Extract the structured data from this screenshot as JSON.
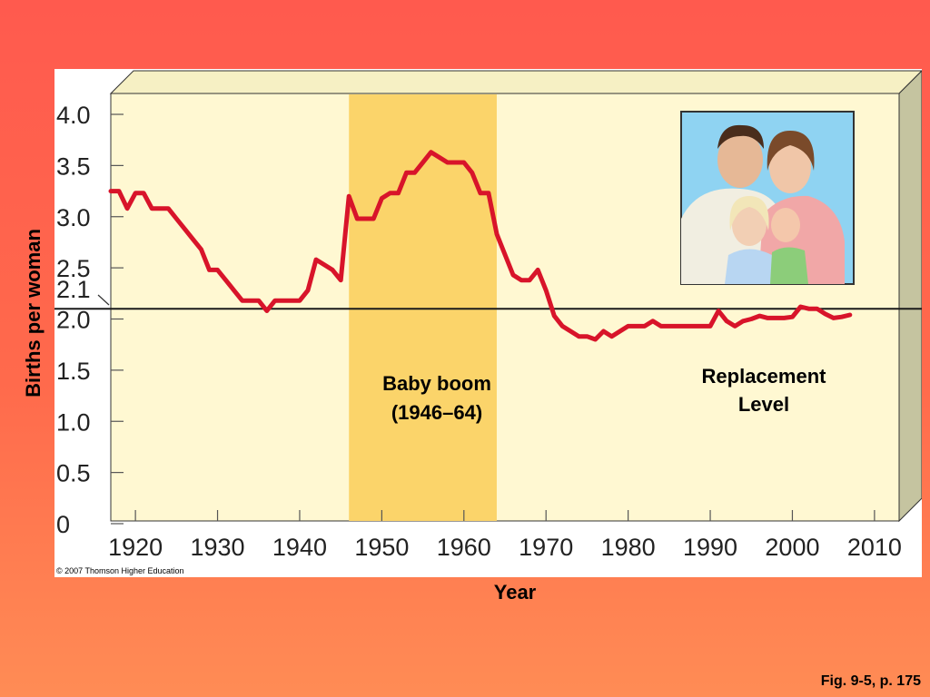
{
  "slide": {
    "x_axis_label": "Year",
    "y_axis_label": "Births per woman",
    "copyright": "© 2007 Thomson Higher Education",
    "figure_ref": "Fig. 9-5, p. 175"
  },
  "annotations": {
    "baby_boom_line1": "Baby boom",
    "baby_boom_line2": "(1946–64)",
    "replacement_line1": "Replacement",
    "replacement_line2": "Level",
    "replacement_tick": "2.1"
  },
  "photo": {
    "description_icon": "family-photo-icon"
  },
  "colors": {
    "background": "#ff5a4e",
    "plot_area": "#fff8d2",
    "baby_boom_band": "#fbd46a",
    "series_line": "#d8142a",
    "replacement_line": "#1a1a1a",
    "side_panel": "#c5c4a0"
  },
  "chart_data": {
    "type": "line",
    "title": "",
    "xlabel": "Year",
    "ylabel": "Births per woman",
    "xlim": [
      1917,
      2013
    ],
    "ylim": [
      0,
      4.0
    ],
    "x_ticks": [
      1920,
      1930,
      1940,
      1950,
      1960,
      1970,
      1980,
      1990,
      2000,
      2010
    ],
    "y_ticks": [
      0,
      0.5,
      1.0,
      1.5,
      2.0,
      2.5,
      3.0,
      3.5,
      4.0
    ],
    "y_tick_labels": [
      "0",
      "0.5",
      "1.0",
      "1.5",
      "2.0",
      "2.5",
      "3.0",
      "3.5",
      "4.0"
    ],
    "shaded_region": {
      "label": "Baby boom (1946–64)",
      "x_start": 1946,
      "x_end": 1964
    },
    "reference_line": {
      "label": "Replacement Level",
      "y": 2.1
    },
    "grid": false,
    "series": [
      {
        "name": "",
        "x": [
          1917,
          1918,
          1919,
          1920,
          1921,
          1922,
          1923,
          1924,
          1925,
          1926,
          1927,
          1928,
          1929,
          1930,
          1931,
          1932,
          1933,
          1934,
          1935,
          1936,
          1937,
          1938,
          1939,
          1940,
          1941,
          1942,
          1943,
          1944,
          1945,
          1946,
          1947,
          1948,
          1949,
          1950,
          1951,
          1952,
          1953,
          1954,
          1955,
          1956,
          1957,
          1958,
          1959,
          1960,
          1961,
          1962,
          1963,
          1964,
          1965,
          1966,
          1967,
          1968,
          1969,
          1970,
          1971,
          1972,
          1973,
          1974,
          1975,
          1976,
          1977,
          1978,
          1979,
          1980,
          1981,
          1982,
          1983,
          1984,
          1985,
          1986,
          1987,
          1988,
          1989,
          1990,
          1991,
          1992,
          1993,
          1994,
          1995,
          1996,
          1997,
          1998,
          1999,
          2000,
          2001,
          2002,
          2003,
          2004,
          2005,
          2006,
          2007
        ],
        "y": [
          3.25,
          3.25,
          3.08,
          3.23,
          3.23,
          3.08,
          3.08,
          3.08,
          2.98,
          2.88,
          2.78,
          2.68,
          2.48,
          2.48,
          2.38,
          2.28,
          2.18,
          2.18,
          2.18,
          2.08,
          2.18,
          2.18,
          2.18,
          2.18,
          2.28,
          2.58,
          2.53,
          2.48,
          2.38,
          3.2,
          2.98,
          2.98,
          2.98,
          3.18,
          3.23,
          3.23,
          3.43,
          3.43,
          3.53,
          3.63,
          3.58,
          3.53,
          3.53,
          3.53,
          3.43,
          3.23,
          3.23,
          2.83,
          2.63,
          2.43,
          2.38,
          2.38,
          2.48,
          2.28,
          2.03,
          1.93,
          1.88,
          1.83,
          1.83,
          1.8,
          1.88,
          1.83,
          1.88,
          1.93,
          1.93,
          1.93,
          1.98,
          1.93,
          1.93,
          1.93,
          1.93,
          1.93,
          1.93,
          1.93,
          2.08,
          1.98,
          1.93,
          1.98,
          2.0,
          2.03,
          2.01,
          2.01,
          2.01,
          2.02,
          2.12,
          2.1,
          2.1,
          2.05,
          2.01,
          2.02,
          2.04
        ]
      }
    ]
  }
}
